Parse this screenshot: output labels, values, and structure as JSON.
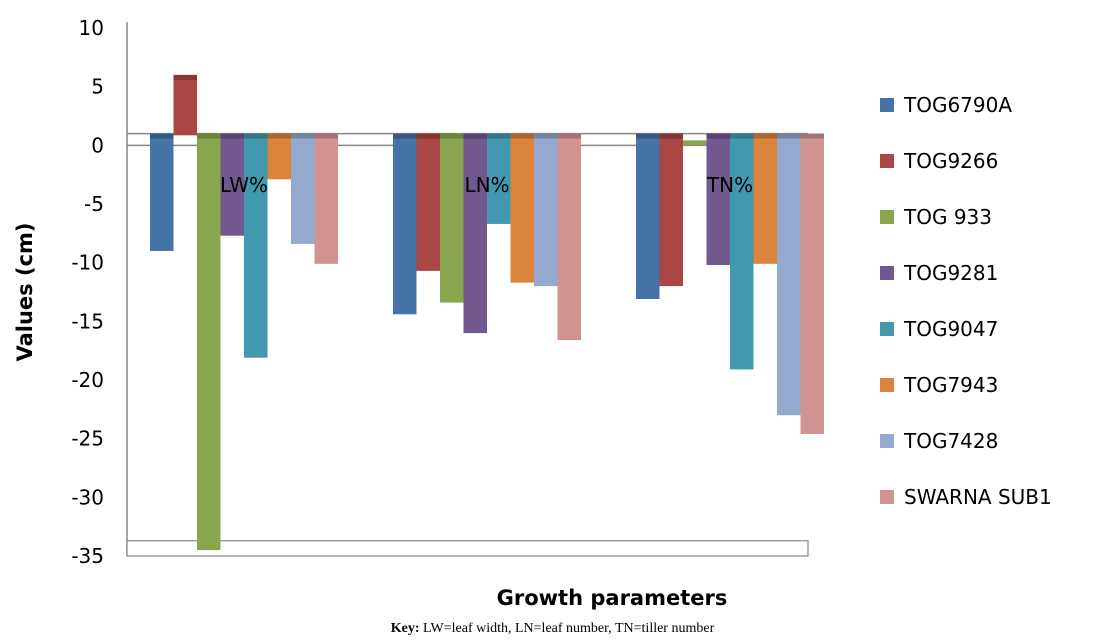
{
  "chart_data": {
    "type": "bar",
    "categories": [
      "LW%",
      "LN%",
      "TN%"
    ],
    "series": [
      {
        "name": "TOG6790A",
        "color": "#4572A7",
        "values": [
          -9,
          -14.4,
          -13.1
        ]
      },
      {
        "name": "TOG9266",
        "color": "#AA4643",
        "values": [
          6,
          -10.7,
          -12
        ]
      },
      {
        "name": "TOG 933",
        "color": "#89A54E",
        "values": [
          -34.5,
          -13.4,
          0
        ]
      },
      {
        "name": "TOG9281",
        "color": "#71588F",
        "values": [
          -7.7,
          -16,
          -10.2
        ]
      },
      {
        "name": "TOG9047",
        "color": "#4198AF",
        "values": [
          -18.1,
          -6.7,
          -19.1
        ]
      },
      {
        "name": "TOG7943",
        "color": "#DB843D",
        "values": [
          -2.9,
          -11.7,
          -10.1
        ]
      },
      {
        "name": "TOG7428",
        "color": "#93A9CF",
        "values": [
          -8.4,
          -12,
          -23
        ]
      },
      {
        "name": "SWARNA SUB1",
        "color": "#D19392",
        "values": [
          -10.1,
          -16.6,
          -24.6
        ]
      }
    ],
    "xlabel": "Growth parameters",
    "ylabel": "Values (cm)",
    "ylim": [
      -35,
      10
    ],
    "yticks": [
      "10",
      "5",
      "0",
      "-5",
      "-10",
      "-15",
      "-20",
      "-25",
      "-30",
      "-35"
    ],
    "legend_position": "right",
    "grid": false
  },
  "caption": {
    "key_label": "Key:",
    "key_text": " LW=leaf width, LN=leaf number, TN=tiller number"
  }
}
